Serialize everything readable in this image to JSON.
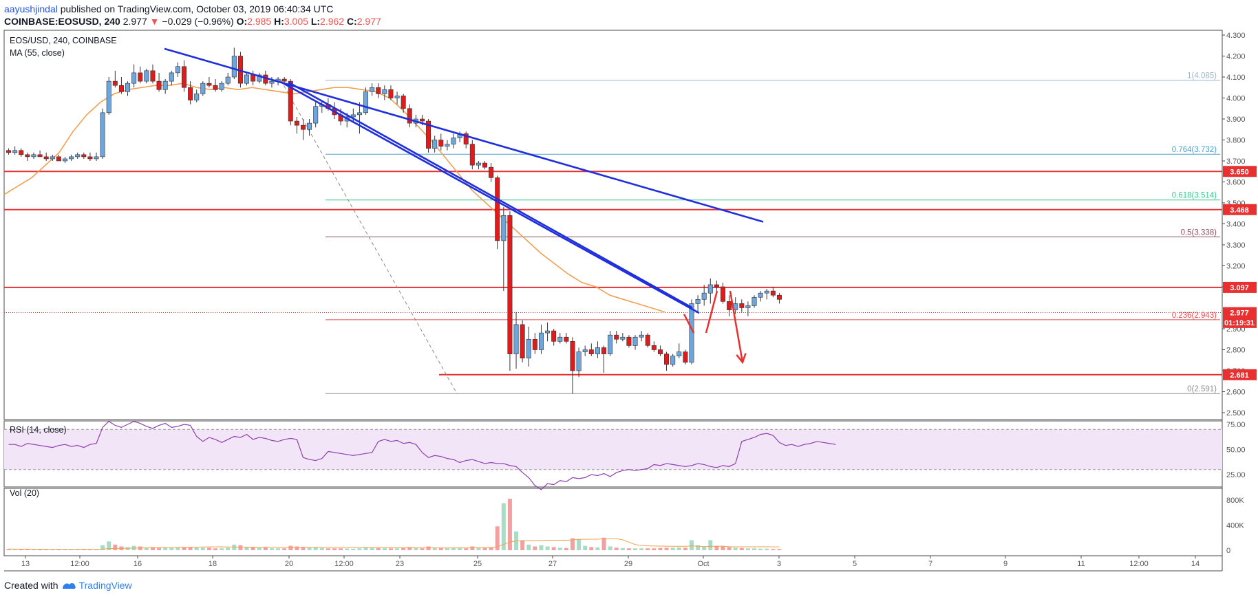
{
  "header": {
    "user": "aayushjindal",
    "published": "published on TradingView.com, October 03, 2019 06:40:34 UTC",
    "symbol_line": "COINBASE:EOSUSD, 240",
    "last": "2.977",
    "arrow": "▼",
    "change": "−0.029 (−0.96%)",
    "o_label": "O:",
    "o": "2.985",
    "h_label": "H:",
    "h": "3.005",
    "l_label": "L:",
    "l": "2.962",
    "c_label": "C:",
    "c": "2.977"
  },
  "legend": {
    "main": "EOS/USD, 240, COINBASE",
    "ma": "MA (55, close)",
    "rsi": "RSI (14, close)",
    "vol": "Vol (20)"
  },
  "footer": {
    "created": "Created with",
    "brand": "TradingView"
  },
  "colors": {
    "up": "#6ca6dc",
    "down": "#e01b1b",
    "trend": "#1f2fdb",
    "ma": "#f0a050",
    "resistance": "#e83030",
    "rsi_line": "#8e3fb0",
    "rsi_band": "#f3e5f8",
    "vol_up": "#a8dcc4",
    "vol_down": "#f3a0a0"
  },
  "chart_data": {
    "type": "candlestick",
    "price_axis": {
      "ticks": [
        "4.300",
        "4.200",
        "4.100",
        "4.000",
        "3.900",
        "3.800",
        "3.700",
        "3.600",
        "3.500",
        "3.400",
        "3.300",
        "3.200",
        "3.100",
        "2.900",
        "2.800",
        "2.700",
        "2.600",
        "2.500"
      ],
      "range": [
        2.5,
        4.3
      ]
    },
    "x_ticks": [
      "13",
      "12:00",
      "16",
      "18",
      "20",
      "12:00",
      "23",
      "25",
      "27",
      "29",
      "Oct",
      "3",
      "5",
      "7",
      "9",
      "11",
      "12:00",
      "14"
    ],
    "price_tags": [
      {
        "text": "3.650",
        "value": 3.65,
        "color": "#e83030"
      },
      {
        "text": "3.468",
        "value": 3.468,
        "color": "#e83030"
      },
      {
        "text": "3.097",
        "value": 3.097,
        "color": "#e83030"
      },
      {
        "text": "2.977",
        "value": 2.977,
        "color": "#e83030"
      },
      {
        "text": "01:19:31",
        "value": 2.93,
        "color": "#e83030"
      },
      {
        "text": "2.681",
        "value": 2.681,
        "color": "#e83030"
      }
    ],
    "fib_levels": [
      {
        "label": "1(4.085)",
        "value": 4.085,
        "color": "#a0b4c8"
      },
      {
        "label": "0.764(3.732)",
        "value": 3.732,
        "color": "#4aa0d0"
      },
      {
        "label": "0.618(3.514)",
        "value": 3.514,
        "color": "#38c890"
      },
      {
        "label": "0.5(3.338)",
        "value": 3.338,
        "color": "#8a5060"
      },
      {
        "label": "0.236(2.943)",
        "value": 2.943,
        "color": "#e05050"
      },
      {
        "label": "0(2.591)",
        "value": 2.591,
        "color": "#909090"
      }
    ],
    "horizontal_lines": [
      3.65,
      3.468,
      3.097,
      2.681
    ],
    "candles": [
      [
        3.75,
        3.76,
        3.73,
        3.74,
        20
      ],
      [
        3.74,
        3.77,
        3.73,
        3.75,
        15
      ],
      [
        3.75,
        3.76,
        3.72,
        3.73,
        18
      ],
      [
        3.73,
        3.74,
        3.7,
        3.72,
        20
      ],
      [
        3.72,
        3.74,
        3.71,
        3.73,
        15
      ],
      [
        3.73,
        3.75,
        3.72,
        3.72,
        12
      ],
      [
        3.72,
        3.74,
        3.7,
        3.71,
        10
      ],
      [
        3.71,
        3.73,
        3.7,
        3.72,
        15
      ],
      [
        3.72,
        3.73,
        3.7,
        3.7,
        12
      ],
      [
        3.7,
        3.72,
        3.69,
        3.71,
        14
      ],
      [
        3.71,
        3.73,
        3.7,
        3.72,
        12
      ],
      [
        3.72,
        3.74,
        3.71,
        3.73,
        12
      ],
      [
        3.73,
        3.74,
        3.71,
        3.72,
        12
      ],
      [
        3.72,
        3.74,
        3.7,
        3.71,
        14
      ],
      [
        3.71,
        3.74,
        3.7,
        3.72,
        12
      ],
      [
        3.72,
        3.95,
        3.71,
        3.93,
        80
      ],
      [
        3.93,
        4.1,
        3.92,
        4.08,
        140
      ],
      [
        4.08,
        4.13,
        4.05,
        4.06,
        90
      ],
      [
        4.06,
        4.1,
        4.02,
        4.03,
        60
      ],
      [
        4.03,
        4.08,
        4.01,
        4.07,
        50
      ],
      [
        4.07,
        4.16,
        4.05,
        4.12,
        70
      ],
      [
        4.12,
        4.15,
        4.07,
        4.08,
        60
      ],
      [
        4.08,
        4.14,
        4.07,
        4.13,
        40
      ],
      [
        4.13,
        4.16,
        4.07,
        4.08,
        50
      ],
      [
        4.08,
        4.12,
        4.03,
        4.04,
        45
      ],
      [
        4.04,
        4.09,
        4.02,
        4.08,
        40
      ],
      [
        4.08,
        4.13,
        4.06,
        4.12,
        35
      ],
      [
        4.12,
        4.17,
        4.1,
        4.15,
        40
      ],
      [
        4.15,
        4.18,
        4.03,
        4.05,
        50
      ],
      [
        4.05,
        4.08,
        3.97,
        3.99,
        55
      ],
      [
        3.99,
        4.04,
        3.98,
        4.02,
        45
      ],
      [
        4.02,
        4.08,
        4.01,
        4.07,
        40
      ],
      [
        4.07,
        4.1,
        4.05,
        4.06,
        40
      ],
      [
        4.06,
        4.09,
        4.03,
        4.04,
        30
      ],
      [
        4.04,
        4.08,
        4.03,
        4.07,
        30
      ],
      [
        4.07,
        4.12,
        4.06,
        4.1,
        40
      ],
      [
        4.1,
        4.24,
        4.09,
        4.2,
        90
      ],
      [
        4.2,
        4.22,
        4.05,
        4.07,
        80
      ],
      [
        4.07,
        4.12,
        4.06,
        4.11,
        50
      ],
      [
        4.11,
        4.13,
        4.06,
        4.08,
        45
      ],
      [
        4.08,
        4.12,
        4.07,
        4.11,
        40
      ],
      [
        4.11,
        4.13,
        4.06,
        4.07,
        45
      ],
      [
        4.07,
        4.1,
        4.05,
        4.08,
        30
      ],
      [
        4.08,
        4.1,
        4.06,
        4.09,
        30
      ],
      [
        4.09,
        4.1,
        4.07,
        4.08,
        30
      ],
      [
        4.08,
        4.09,
        3.87,
        3.89,
        70
      ],
      [
        3.89,
        3.91,
        3.83,
        3.87,
        60
      ],
      [
        3.87,
        3.9,
        3.8,
        3.85,
        50
      ],
      [
        3.85,
        3.9,
        3.82,
        3.88,
        40
      ],
      [
        3.88,
        3.98,
        3.86,
        3.96,
        45
      ],
      [
        3.96,
        3.99,
        3.93,
        3.97,
        35
      ],
      [
        3.97,
        4.0,
        3.94,
        3.95,
        30
      ],
      [
        3.95,
        3.98,
        3.9,
        3.92,
        30
      ],
      [
        3.92,
        3.95,
        3.87,
        3.89,
        30
      ],
      [
        3.89,
        3.93,
        3.86,
        3.91,
        28
      ],
      [
        3.91,
        3.95,
        3.88,
        3.92,
        25
      ],
      [
        3.92,
        3.98,
        3.83,
        3.93,
        30
      ],
      [
        3.93,
        4.05,
        3.92,
        4.03,
        50
      ],
      [
        4.03,
        4.07,
        4.01,
        4.05,
        45
      ],
      [
        4.05,
        4.07,
        4.0,
        4.02,
        40
      ],
      [
        4.02,
        4.06,
        3.99,
        4.04,
        35
      ],
      [
        4.04,
        4.06,
        3.99,
        4.0,
        30
      ],
      [
        4.0,
        4.03,
        3.97,
        4.01,
        30
      ],
      [
        4.01,
        4.02,
        3.93,
        3.95,
        40
      ],
      [
        3.95,
        3.97,
        3.86,
        3.88,
        50
      ],
      [
        3.88,
        3.92,
        3.86,
        3.9,
        35
      ],
      [
        3.9,
        3.92,
        3.87,
        3.89,
        30
      ],
      [
        3.89,
        3.9,
        3.74,
        3.76,
        60
      ],
      [
        3.76,
        3.82,
        3.74,
        3.8,
        40
      ],
      [
        3.8,
        3.83,
        3.75,
        3.77,
        35
      ],
      [
        3.77,
        3.8,
        3.75,
        3.78,
        30
      ],
      [
        3.78,
        3.83,
        3.76,
        3.81,
        35
      ],
      [
        3.81,
        3.84,
        3.79,
        3.83,
        40
      ],
      [
        3.83,
        3.84,
        3.76,
        3.78,
        30
      ],
      [
        3.78,
        3.8,
        3.66,
        3.68,
        60
      ],
      [
        3.68,
        3.7,
        3.66,
        3.69,
        40
      ],
      [
        3.69,
        3.7,
        3.66,
        3.67,
        45
      ],
      [
        3.67,
        3.69,
        3.6,
        3.62,
        50
      ],
      [
        3.62,
        3.63,
        3.28,
        3.32,
        380
      ],
      [
        3.32,
        3.48,
        3.08,
        3.44,
        750
      ],
      [
        3.44,
        3.46,
        2.7,
        2.78,
        820
      ],
      [
        2.78,
        2.98,
        2.71,
        2.92,
        300
      ],
      [
        2.92,
        2.94,
        2.74,
        2.76,
        160
      ],
      [
        2.76,
        2.91,
        2.72,
        2.85,
        90
      ],
      [
        2.85,
        2.88,
        2.78,
        2.8,
        60
      ],
      [
        2.8,
        2.92,
        2.78,
        2.88,
        80
      ],
      [
        2.88,
        2.93,
        2.84,
        2.89,
        60
      ],
      [
        2.89,
        2.9,
        2.82,
        2.84,
        50
      ],
      [
        2.84,
        2.88,
        2.83,
        2.86,
        40
      ],
      [
        2.86,
        2.88,
        2.83,
        2.84,
        35
      ],
      [
        2.84,
        2.86,
        2.59,
        2.7,
        190
      ],
      [
        2.7,
        2.81,
        2.67,
        2.79,
        180
      ],
      [
        2.79,
        2.82,
        2.77,
        2.8,
        70
      ],
      [
        2.8,
        2.83,
        2.77,
        2.78,
        50
      ],
      [
        2.78,
        2.84,
        2.76,
        2.81,
        45
      ],
      [
        2.81,
        2.82,
        2.69,
        2.78,
        200
      ],
      [
        2.78,
        2.89,
        2.77,
        2.87,
        60
      ],
      [
        2.87,
        2.89,
        2.83,
        2.85,
        40
      ],
      [
        2.85,
        2.88,
        2.84,
        2.86,
        35
      ],
      [
        2.86,
        2.87,
        2.81,
        2.82,
        30
      ],
      [
        2.82,
        2.87,
        2.8,
        2.86,
        30
      ],
      [
        2.86,
        2.89,
        2.84,
        2.87,
        30
      ],
      [
        2.87,
        2.88,
        2.81,
        2.82,
        30
      ],
      [
        2.82,
        2.84,
        2.79,
        2.8,
        30
      ],
      [
        2.8,
        2.82,
        2.77,
        2.78,
        35
      ],
      [
        2.78,
        2.79,
        2.7,
        2.73,
        40
      ],
      [
        2.73,
        2.78,
        2.72,
        2.77,
        40
      ],
      [
        2.77,
        2.83,
        2.76,
        2.79,
        45
      ],
      [
        2.79,
        2.8,
        2.73,
        2.74,
        40
      ],
      [
        2.74,
        3.04,
        2.73,
        3.02,
        160
      ],
      [
        3.02,
        3.06,
        2.98,
        3.04,
        80
      ],
      [
        3.04,
        3.11,
        3.01,
        3.07,
        60
      ],
      [
        3.07,
        3.14,
        3.02,
        3.11,
        160
      ],
      [
        3.11,
        3.13,
        3.08,
        3.1,
        70
      ],
      [
        3.1,
        3.12,
        3.02,
        3.03,
        60
      ],
      [
        3.03,
        3.06,
        2.96,
        2.99,
        50
      ],
      [
        2.99,
        3.05,
        2.97,
        3.02,
        40
      ],
      [
        3.02,
        3.04,
        2.98,
        3.0,
        35
      ],
      [
        3.0,
        3.03,
        2.96,
        3.01,
        30
      ],
      [
        3.01,
        3.06,
        3.0,
        3.05,
        30
      ],
      [
        3.05,
        3.08,
        3.03,
        3.07,
        25
      ],
      [
        3.07,
        3.09,
        3.04,
        3.08,
        25
      ],
      [
        3.08,
        3.1,
        3.05,
        3.06,
        20
      ],
      [
        3.06,
        3.07,
        3.02,
        3.04,
        20
      ]
    ],
    "ma_points": [
      [
        0,
        3.54
      ],
      [
        20,
        3.58
      ],
      [
        40,
        3.62
      ],
      [
        60,
        3.68
      ],
      [
        80,
        3.74
      ],
      [
        100,
        3.84
      ],
      [
        120,
        3.92
      ],
      [
        140,
        3.98
      ],
      [
        160,
        4.02
      ],
      [
        180,
        4.04
      ],
      [
        200,
        4.05
      ],
      [
        220,
        4.06
      ],
      [
        240,
        4.06
      ],
      [
        260,
        4.07
      ],
      [
        280,
        4.05
      ],
      [
        300,
        4.04
      ],
      [
        320,
        4.05
      ],
      [
        340,
        4.04
      ],
      [
        360,
        4.05
      ],
      [
        380,
        4.04
      ],
      [
        400,
        4.03
      ],
      [
        420,
        4.02
      ],
      [
        440,
        4.03
      ],
      [
        460,
        4.04
      ],
      [
        480,
        4.05
      ],
      [
        500,
        4.05
      ],
      [
        520,
        4.04
      ],
      [
        540,
        4.03
      ],
      [
        560,
        4.0
      ],
      [
        580,
        3.94
      ],
      [
        600,
        3.87
      ],
      [
        620,
        3.8
      ],
      [
        640,
        3.72
      ],
      [
        660,
        3.64
      ],
      [
        680,
        3.56
      ],
      [
        700,
        3.5
      ],
      [
        720,
        3.44
      ],
      [
        740,
        3.38
      ],
      [
        760,
        3.32
      ],
      [
        780,
        3.26
      ],
      [
        800,
        3.21
      ],
      [
        820,
        3.16
      ],
      [
        840,
        3.12
      ],
      [
        860,
        3.1
      ],
      [
        880,
        3.06
      ],
      [
        900,
        3.04
      ],
      [
        920,
        3.02
      ],
      [
        940,
        3.0
      ],
      [
        960,
        2.98
      ]
    ],
    "trendlines": [
      {
        "from": [
          233,
          4.235
        ],
        "to": [
          1103,
          3.41
        ]
      },
      {
        "from": [
          403,
          4.075
        ],
        "to": [
          1010,
          2.975
        ]
      },
      {
        "from": [
          413,
          4.075
        ],
        "to": [
          1000,
          3.0
        ]
      }
    ],
    "dashed_fib_line": {
      "from": [
        408,
        4.085
      ],
      "to": [
        664,
        2.591
      ]
    },
    "arrows": [
      {
        "points": [
          [
            988,
            2.97
          ],
          [
            1002,
            2.88
          ]
        ]
      },
      {
        "points": [
          [
            1020,
            2.88
          ],
          [
            1036,
            3.08
          ]
        ]
      },
      {
        "points": [
          [
            1055,
            3.08
          ],
          [
            1073,
            2.74
          ]
        ]
      }
    ],
    "rsi": {
      "ticks": [
        "75.00",
        "50.00",
        "25.00"
      ],
      "levels": [
        70,
        30
      ],
      "values": [
        55,
        55,
        53,
        56,
        55,
        54,
        53,
        52,
        54,
        55,
        53,
        54,
        52,
        55,
        56,
        72,
        78,
        74,
        72,
        75,
        78,
        76,
        73,
        71,
        74,
        76,
        72,
        73,
        75,
        74,
        63,
        58,
        62,
        60,
        57,
        60,
        63,
        62,
        65,
        60,
        62,
        61,
        59,
        58,
        60,
        61,
        60,
        42,
        40,
        39,
        41,
        48,
        47,
        46,
        45,
        44,
        45,
        46,
        47,
        58,
        60,
        58,
        59,
        56,
        57,
        55,
        47,
        42,
        44,
        43,
        41,
        40,
        37,
        39,
        40,
        38,
        36,
        37,
        36,
        36,
        34,
        33,
        27,
        22,
        14,
        10,
        16,
        15,
        19,
        18,
        22,
        21,
        22,
        25,
        24,
        26,
        23,
        27,
        29,
        30,
        29,
        30,
        31,
        35,
        34,
        36,
        35,
        34,
        33,
        34,
        36,
        35,
        33,
        32,
        34,
        33,
        36,
        58,
        60,
        62,
        65,
        66,
        64,
        57,
        54,
        55,
        53,
        55,
        56,
        58,
        57,
        56,
        55
      ],
      "range": [
        0,
        100
      ]
    },
    "volume": {
      "ticks": [
        "800K",
        "400K",
        "0"
      ],
      "range": [
        0,
        900
      ]
    }
  }
}
